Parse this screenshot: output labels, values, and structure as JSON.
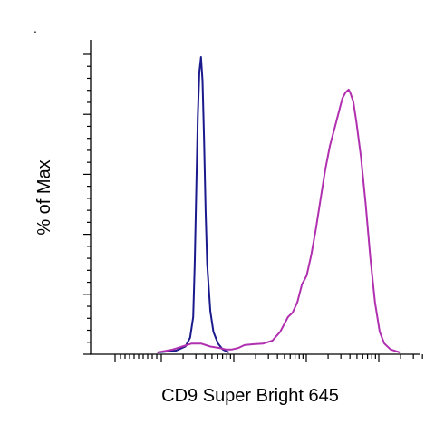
{
  "chart_data": {
    "type": "line",
    "title": "",
    "xlabel": "CD9 Super Bright 645",
    "ylabel": "% of Max",
    "x_scale": "log",
    "xlim": [
      0,
      1
    ],
    "ylim": [
      0,
      100
    ],
    "tick_labels_shown": false,
    "legend": "none",
    "grid": false,
    "series": [
      {
        "color": "#1a1a8c",
        "points": [
          [
            0.18,
            0
          ],
          [
            0.24,
            0.6
          ],
          [
            0.27,
            2
          ],
          [
            0.285,
            5
          ],
          [
            0.295,
            12
          ],
          [
            0.3,
            30
          ],
          [
            0.305,
            55
          ],
          [
            0.31,
            80
          ],
          [
            0.315,
            95
          ],
          [
            0.32,
            100
          ],
          [
            0.325,
            92
          ],
          [
            0.33,
            72
          ],
          [
            0.335,
            48
          ],
          [
            0.34,
            30
          ],
          [
            0.35,
            14
          ],
          [
            0.36,
            7
          ],
          [
            0.375,
            3
          ],
          [
            0.39,
            1
          ],
          [
            0.41,
            0
          ]
        ]
      },
      {
        "color": "#b030b0",
        "points": [
          [
            0.18,
            0
          ],
          [
            0.23,
            1
          ],
          [
            0.26,
            2
          ],
          [
            0.29,
            3
          ],
          [
            0.32,
            3
          ],
          [
            0.35,
            2
          ],
          [
            0.38,
            1.5
          ],
          [
            0.4,
            1
          ],
          [
            0.42,
            1
          ],
          [
            0.44,
            1.5
          ],
          [
            0.46,
            2.5
          ],
          [
            0.49,
            2.8
          ],
          [
            0.52,
            3
          ],
          [
            0.55,
            4
          ],
          [
            0.575,
            7
          ],
          [
            0.59,
            10
          ],
          [
            0.6,
            12
          ],
          [
            0.615,
            13.5
          ],
          [
            0.63,
            17
          ],
          [
            0.645,
            23
          ],
          [
            0.66,
            26
          ],
          [
            0.675,
            33
          ],
          [
            0.69,
            42
          ],
          [
            0.705,
            52
          ],
          [
            0.72,
            62
          ],
          [
            0.735,
            70
          ],
          [
            0.75,
            76
          ],
          [
            0.765,
            82
          ],
          [
            0.775,
            86
          ],
          [
            0.785,
            88
          ],
          [
            0.795,
            89
          ],
          [
            0.8,
            88
          ],
          [
            0.81,
            85
          ],
          [
            0.82,
            78
          ],
          [
            0.835,
            66
          ],
          [
            0.85,
            50
          ],
          [
            0.865,
            32
          ],
          [
            0.88,
            17
          ],
          [
            0.895,
            7
          ],
          [
            0.91,
            3
          ],
          [
            0.93,
            1
          ],
          [
            0.96,
            0
          ]
        ]
      }
    ]
  },
  "stray_mark": "."
}
